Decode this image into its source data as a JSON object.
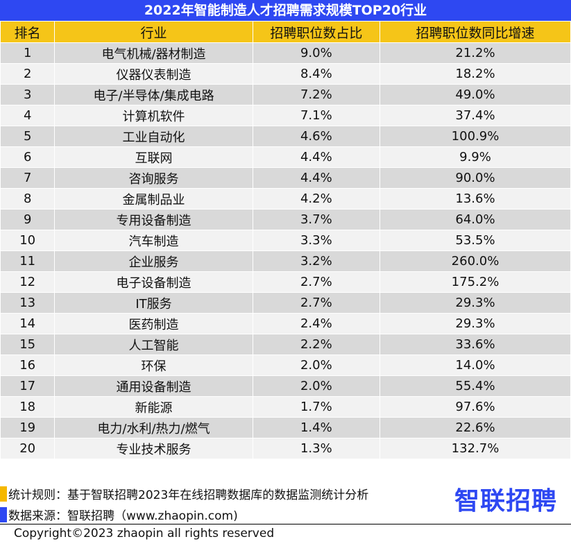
{
  "title": "2022年智能制造人才招聘需求规模TOP20行业",
  "headers": [
    "排名",
    "行业",
    "招聘职位数占比",
    "招聘职位数同比增速"
  ],
  "rows": [
    [
      "1",
      "电气机械/器材制造",
      "9.0%",
      "21.2%"
    ],
    [
      "2",
      "仪器仪表制造",
      "8.4%",
      "18.2%"
    ],
    [
      "3",
      "电子/半导体/集成电路",
      "7.2%",
      "49.0%"
    ],
    [
      "4",
      "计算机软件",
      "7.1%",
      "37.4%"
    ],
    [
      "5",
      "工业自动化",
      "4.6%",
      "100.9%"
    ],
    [
      "6",
      "互联网",
      "4.4%",
      "9.9%"
    ],
    [
      "7",
      "咨询服务",
      "4.4%",
      "90.0%"
    ],
    [
      "8",
      "金属制品业",
      "4.2%",
      "13.6%"
    ],
    [
      "9",
      "专用设备制造",
      "3.7%",
      "64.0%"
    ],
    [
      "10",
      "汽车制造",
      "3.3%",
      "53.5%"
    ],
    [
      "11",
      "企业服务",
      "3.2%",
      "260.0%"
    ],
    [
      "12",
      "电子设备制造",
      "2.7%",
      "175.2%"
    ],
    [
      "13",
      "IT服务",
      "2.7%",
      "29.3%"
    ],
    [
      "14",
      "医药制造",
      "2.4%",
      "29.3%"
    ],
    [
      "15",
      "人工智能",
      "2.2%",
      "33.6%"
    ],
    [
      "16",
      "环保",
      "2.0%",
      "14.0%"
    ],
    [
      "17",
      "通用设备制造",
      "2.0%",
      "55.4%"
    ],
    [
      "18",
      "新能源",
      "1.7%",
      "97.6%"
    ],
    [
      "19",
      "电力/水利/热力/燃气",
      "1.4%",
      "22.6%"
    ],
    [
      "20",
      "专业技术服务",
      "1.3%",
      "132.7%"
    ]
  ],
  "footer": {
    "rule": "统计规则：基于智联招聘2023年在线招聘数据库的数据监测统计分析",
    "source": "数据来源：智联招聘（www.zhaopin.com)",
    "logo": "智联招聘",
    "copyright": "Copyright©2023 zhaopin all rights reserved"
  },
  "colors": {
    "title_bg": "#2e48f2",
    "header_bg": "#f5c518",
    "row_odd": "#d9d9d9",
    "row_even": "#f2f2f2"
  }
}
